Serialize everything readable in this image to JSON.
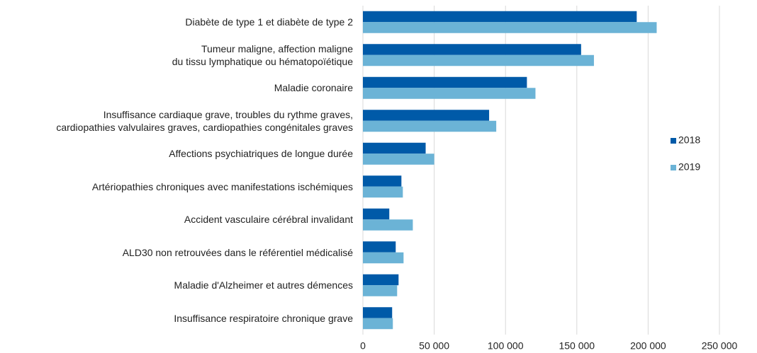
{
  "chart_data": {
    "type": "bar",
    "orientation": "horizontal",
    "categories": [
      "Diabète de type 1 et diabète de type 2",
      "Tumeur maligne, affection maligne\ndu tissu lymphatique ou hématopoïétique",
      "Maladie coronaire",
      "Insuffisance cardiaque grave, troubles du rythme graves,\ncardiopathies valvulaires graves, cardiopathies congénitales graves",
      "Affections psychiatriques de longue durée",
      "Artériopathies chroniques avec manifestations ischémiques",
      "Accident vasculaire cérébral invalidant",
      "ALD30 non retrouvées dans le référentiel médicalisé",
      "Maladie d'Alzheimer et autres démences",
      "Insuffisance respiratoire chronique grave"
    ],
    "series": [
      {
        "name": "2018",
        "color": "#005aa8",
        "values": [
          192000,
          153000,
          115000,
          88500,
          44000,
          27000,
          18500,
          23000,
          25000,
          20500
        ]
      },
      {
        "name": "2019",
        "color": "#6bb3d6",
        "values": [
          206000,
          162000,
          121000,
          93500,
          50000,
          28000,
          35000,
          28500,
          24000,
          21000
        ]
      }
    ],
    "xlim": [
      0,
      250000
    ],
    "xticks": [
      0,
      {
        "value": 50000,
        "label": "50 000"
      },
      {
        "value": 100000,
        "label": "100 000"
      },
      {
        "value": 150000,
        "label": "150 000"
      },
      {
        "value": 200000,
        "label": "200 000"
      },
      {
        "value": 250000,
        "label": "250 000"
      }
    ],
    "grid": true,
    "legend": "right"
  }
}
